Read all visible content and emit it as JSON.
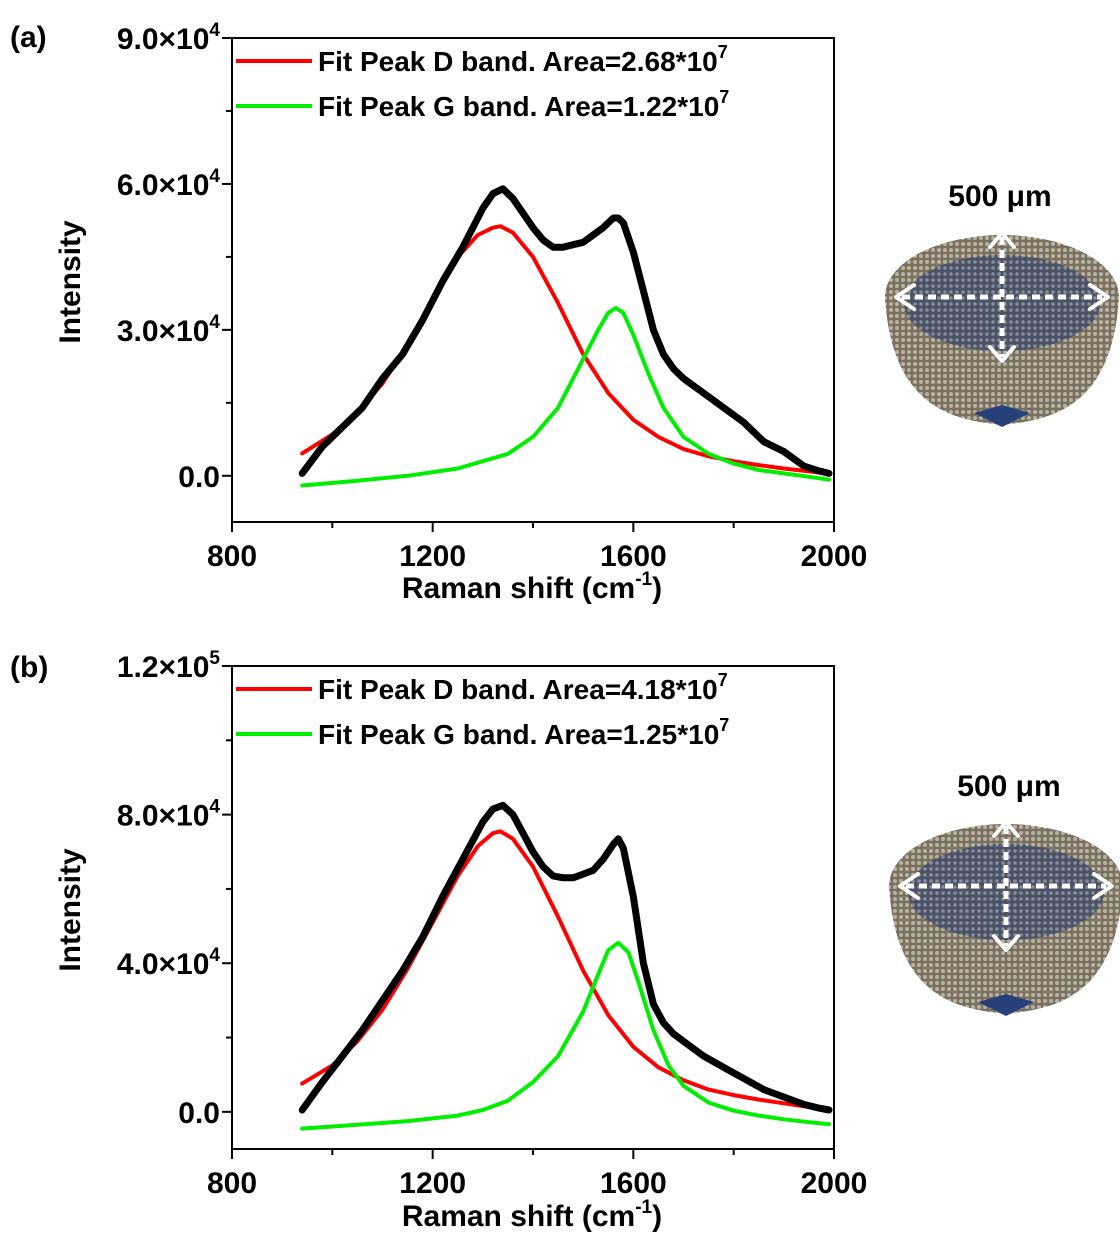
{
  "panels": [
    {
      "label": "(a)",
      "scale_label": "500 μm",
      "illustration_icon": "textured-bowl-with-arrows-icon"
    },
    {
      "label": "(b)",
      "scale_label": "500 μm",
      "illustration_icon": "textured-bowl-with-arrows-icon"
    }
  ],
  "chart_data": [
    {
      "type": "line",
      "xlabel": "Raman shift (cm-1)",
      "ylabel": "Intensity",
      "xlim": [
        800,
        2000
      ],
      "ylim": [
        -9500,
        90000
      ],
      "xticks": [
        800,
        1200,
        1600,
        2000
      ],
      "yticks": [
        {
          "value": 0,
          "label": "0.0"
        },
        {
          "value": 30000,
          "label": "3.0×10",
          "exp": "4"
        },
        {
          "value": 60000,
          "label": "6.0×10",
          "exp": "4"
        },
        {
          "value": 90000,
          "label": "9.0×10",
          "exp": "4"
        }
      ],
      "legend_position": "top-left",
      "series": [
        {
          "name": "",
          "color": "#000000",
          "x": [
            940,
            980,
            1020,
            1060,
            1100,
            1140,
            1180,
            1220,
            1260,
            1300,
            1320,
            1340,
            1360,
            1380,
            1400,
            1420,
            1440,
            1460,
            1480,
            1500,
            1520,
            1540,
            1560,
            1570,
            1580,
            1600,
            1620,
            1640,
            1660,
            1680,
            1700,
            1740,
            1780,
            1820,
            1860,
            1900,
            1940,
            1970,
            1990
          ],
          "y": [
            500,
            6000,
            10000,
            14000,
            20000,
            25000,
            32000,
            40000,
            47000,
            55000,
            58000,
            59000,
            57000,
            54000,
            51000,
            48500,
            47000,
            47000,
            47500,
            48000,
            49500,
            51000,
            53000,
            53000,
            52000,
            46000,
            38000,
            30000,
            25000,
            22000,
            20000,
            17000,
            14000,
            11000,
            7000,
            5000,
            2000,
            1000,
            500
          ]
        },
        {
          "name": "Fit Peak D band. Area=2.68*10",
          "name_exp": "7",
          "color": "#ff0000",
          "x": [
            940,
            1000,
            1050,
            1100,
            1150,
            1200,
            1250,
            1290,
            1320,
            1335,
            1360,
            1400,
            1450,
            1500,
            1550,
            1600,
            1650,
            1700,
            1750,
            1800,
            1850,
            1900,
            1950,
            1990
          ],
          "y": [
            4600,
            8500,
            13000,
            19000,
            27000,
            36000,
            45000,
            49500,
            51000,
            51300,
            50000,
            45000,
            35500,
            25000,
            17000,
            11500,
            8000,
            5500,
            4000,
            3000,
            2200,
            1500,
            900,
            400
          ]
        },
        {
          "name": "Fit Peak G band. Area=1.22*10",
          "name_exp": "7",
          "color": "#00ee00",
          "x": [
            940,
            1050,
            1150,
            1250,
            1300,
            1350,
            1400,
            1450,
            1500,
            1530,
            1550,
            1565,
            1580,
            1600,
            1630,
            1660,
            1700,
            1750,
            1800,
            1850,
            1900,
            1950,
            1990
          ],
          "y": [
            -2000,
            -1000,
            0,
            1500,
            3000,
            4500,
            8000,
            14000,
            24000,
            30000,
            33500,
            34500,
            33500,
            29000,
            21000,
            14000,
            8000,
            4500,
            2500,
            1200,
            500,
            -200,
            -800
          ]
        }
      ]
    },
    {
      "type": "line",
      "xlabel": "Raman shift (cm-1)",
      "ylabel": "Intensity",
      "xlim": [
        800,
        2000
      ],
      "ylim": [
        -10000,
        120000
      ],
      "xticks": [
        800,
        1200,
        1600,
        2000
      ],
      "yticks": [
        {
          "value": 0,
          "label": "0.0"
        },
        {
          "value": 40000,
          "label": "4.0×10",
          "exp": "4"
        },
        {
          "value": 80000,
          "label": "8.0×10",
          "exp": "4"
        },
        {
          "value": 120000,
          "label": "1.2×10",
          "exp": "5"
        }
      ],
      "legend_position": "top-left",
      "series": [
        {
          "name": "",
          "color": "#000000",
          "x": [
            940,
            980,
            1020,
            1060,
            1100,
            1140,
            1180,
            1220,
            1260,
            1300,
            1320,
            1340,
            1360,
            1380,
            1400,
            1420,
            1440,
            1460,
            1480,
            1500,
            1520,
            1540,
            1560,
            1570,
            1580,
            1600,
            1620,
            1640,
            1660,
            1680,
            1700,
            1740,
            1780,
            1820,
            1860,
            1900,
            1940,
            1970,
            1990
          ],
          "y": [
            500,
            8000,
            15000,
            22000,
            30000,
            38000,
            47000,
            58000,
            68000,
            78000,
            81500,
            82500,
            80000,
            75000,
            70000,
            66000,
            63500,
            63000,
            63000,
            64000,
            65000,
            68000,
            72000,
            73500,
            71000,
            58000,
            40000,
            29000,
            24000,
            21000,
            19000,
            15000,
            12000,
            9000,
            6000,
            4000,
            2000,
            1000,
            500
          ]
        },
        {
          "name": "Fit Peak D band. Area=4.18*10",
          "name_exp": "7",
          "color": "#ff0000",
          "x": [
            940,
            1000,
            1050,
            1100,
            1150,
            1200,
            1250,
            1290,
            1320,
            1335,
            1360,
            1400,
            1450,
            1500,
            1550,
            1600,
            1650,
            1700,
            1750,
            1800,
            1850,
            1900,
            1950,
            1990
          ],
          "y": [
            7600,
            12500,
            19000,
            27500,
            38500,
            51000,
            63500,
            71500,
            75000,
            75500,
            73500,
            66000,
            52500,
            38000,
            26000,
            17500,
            12000,
            8500,
            6000,
            4500,
            3300,
            2300,
            1300,
            500
          ]
        },
        {
          "name": "Fit Peak G band. Area=1.25*10",
          "name_exp": "7",
          "color": "#00ee00",
          "x": [
            940,
            1050,
            1150,
            1250,
            1300,
            1350,
            1400,
            1450,
            1500,
            1530,
            1550,
            1570,
            1590,
            1610,
            1640,
            1670,
            1700,
            1750,
            1800,
            1850,
            1900,
            1950,
            1990
          ],
          "y": [
            -4500,
            -3500,
            -2500,
            -1000,
            500,
            3000,
            8000,
            15000,
            27000,
            37000,
            43500,
            45500,
            43000,
            35000,
            22000,
            12500,
            7000,
            2500,
            300,
            -1000,
            -2000,
            -2800,
            -3300
          ]
        }
      ]
    }
  ]
}
